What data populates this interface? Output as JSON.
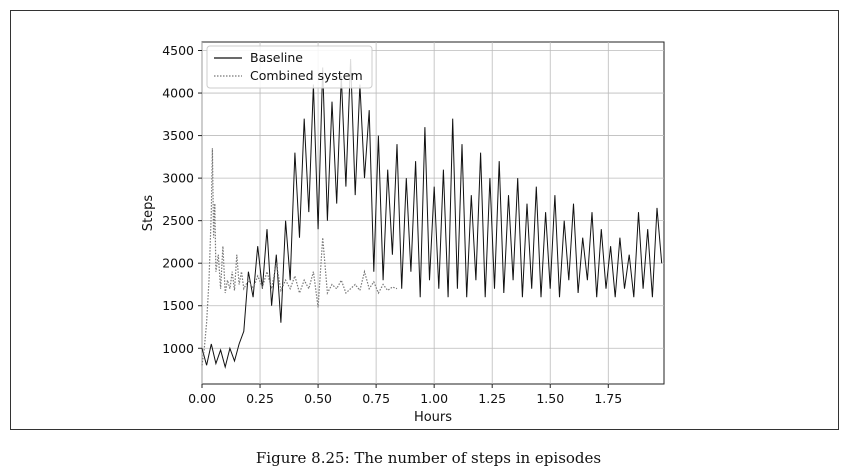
{
  "caption": "Figure 8.25: The number of steps in episodes",
  "chart_data": {
    "type": "line",
    "title": "",
    "xlabel": "Hours",
    "ylabel": "Steps",
    "xlim": [
      0,
      1.99
    ],
    "ylim": [
      580,
      4600
    ],
    "xticks": [
      0,
      0.25,
      0.5,
      0.75,
      1.0,
      1.25,
      1.5,
      1.75
    ],
    "xtick_labels": [
      "0.00",
      "0.25",
      "0.50",
      "0.75",
      "1.00",
      "1.25",
      "1.50",
      "1.75"
    ],
    "yticks": [
      1000,
      1500,
      2000,
      2500,
      3000,
      3500,
      4000,
      4500
    ],
    "ytick_labels": [
      "1000",
      "1500",
      "2000",
      "2500",
      "3000",
      "3500",
      "4000",
      "4500"
    ],
    "grid": true,
    "legend_position": "top-left",
    "series": [
      {
        "name": "Baseline",
        "style": "solid",
        "color": "#111111",
        "x": [
          0.0,
          0.02,
          0.04,
          0.06,
          0.08,
          0.1,
          0.12,
          0.14,
          0.16,
          0.18,
          0.2,
          0.22,
          0.24,
          0.26,
          0.28,
          0.3,
          0.32,
          0.34,
          0.36,
          0.38,
          0.4,
          0.42,
          0.44,
          0.46,
          0.48,
          0.5,
          0.52,
          0.54,
          0.56,
          0.58,
          0.6,
          0.62,
          0.64,
          0.66,
          0.68,
          0.7,
          0.72,
          0.74,
          0.76,
          0.78,
          0.8,
          0.82,
          0.84,
          0.86,
          0.88,
          0.9,
          0.92,
          0.94,
          0.96,
          0.98,
          1.0,
          1.02,
          1.04,
          1.06,
          1.08,
          1.1,
          1.12,
          1.14,
          1.16,
          1.18,
          1.2,
          1.22,
          1.24,
          1.26,
          1.28,
          1.3,
          1.32,
          1.34,
          1.36,
          1.38,
          1.4,
          1.42,
          1.44,
          1.46,
          1.48,
          1.5,
          1.52,
          1.54,
          1.56,
          1.58,
          1.6,
          1.62,
          1.64,
          1.66,
          1.68,
          1.7,
          1.72,
          1.74,
          1.76,
          1.78,
          1.8,
          1.82,
          1.84,
          1.86,
          1.88,
          1.9,
          1.92,
          1.94,
          1.96,
          1.98
        ],
        "values": [
          1000,
          800,
          1050,
          820,
          980,
          780,
          1000,
          850,
          1050,
          1200,
          1900,
          1600,
          2200,
          1700,
          2400,
          1500,
          2100,
          1300,
          2500,
          1800,
          3300,
          2300,
          3700,
          2600,
          4100,
          2400,
          4300,
          2500,
          3900,
          2700,
          4200,
          2900,
          4400,
          2800,
          4100,
          3000,
          3800,
          1900,
          3500,
          1800,
          3100,
          2100,
          3400,
          1700,
          3000,
          1900,
          3200,
          1600,
          3600,
          1800,
          2900,
          1700,
          3100,
          1600,
          3700,
          1700,
          3400,
          1600,
          2800,
          1800,
          3300,
          1600,
          3000,
          1700,
          3200,
          1650,
          2800,
          1800,
          3000,
          1600,
          2700,
          1700,
          2900,
          1600,
          2600,
          1700,
          2800,
          1600,
          2500,
          1800,
          2700,
          1650,
          2300,
          1800,
          2600,
          1600,
          2400,
          1700,
          2200,
          1600,
          2300,
          1700,
          2100,
          1600,
          2600,
          1700,
          2400,
          1600,
          2650,
          2000
        ]
      },
      {
        "name": "Combined system",
        "style": "dotted",
        "color": "#777777",
        "x": [
          0.0,
          0.01,
          0.02,
          0.03,
          0.04,
          0.045,
          0.05,
          0.055,
          0.06,
          0.07,
          0.08,
          0.09,
          0.1,
          0.11,
          0.12,
          0.13,
          0.14,
          0.15,
          0.16,
          0.17,
          0.18,
          0.2,
          0.22,
          0.24,
          0.26,
          0.28,
          0.3,
          0.32,
          0.34,
          0.36,
          0.38,
          0.4,
          0.42,
          0.44,
          0.46,
          0.48,
          0.5,
          0.52,
          0.54,
          0.56,
          0.58,
          0.6,
          0.62,
          0.64,
          0.66,
          0.68,
          0.7,
          0.72,
          0.74,
          0.76,
          0.78,
          0.8,
          0.82,
          0.84
        ],
        "values": [
          800,
          1000,
          1300,
          1800,
          2600,
          3350,
          2300,
          2700,
          1900,
          2100,
          1700,
          2200,
          1650,
          1800,
          1700,
          1900,
          1680,
          2100,
          1750,
          1900,
          1700,
          1800,
          1700,
          1850,
          1720,
          1900,
          1700,
          2000,
          1680,
          1800,
          1700,
          1850,
          1650,
          1800,
          1700,
          1900,
          1480,
          2300,
          1650,
          1750,
          1700,
          1800,
          1650,
          1700,
          1750,
          1680,
          1900,
          1700,
          1780,
          1650,
          1750,
          1680,
          1720,
          1700
        ]
      }
    ]
  }
}
